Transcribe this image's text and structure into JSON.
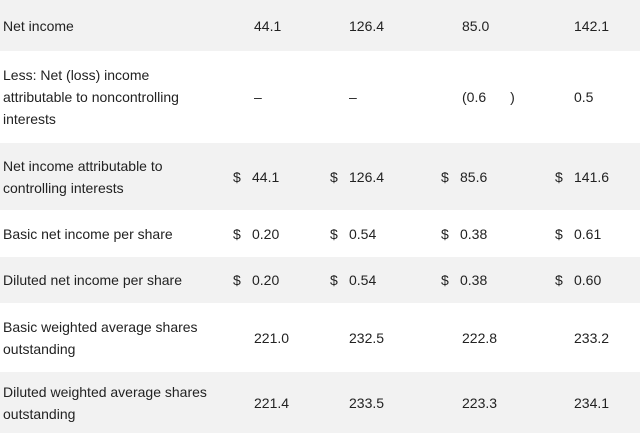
{
  "rows": [
    {
      "label": "Net income",
      "values": [
        "44.1",
        "126.4",
        "85.0",
        "142.1"
      ],
      "dollar": false,
      "shaded": true
    },
    {
      "label": "Less: Net (loss) income attributable to noncontrolling interests",
      "values": [
        "–",
        "–",
        "(0.6",
        "0.5"
      ],
      "close_paren": ")",
      "dollar": false,
      "shaded": false
    },
    {
      "label": "Net income attributable to controlling interests",
      "values": [
        "44.1",
        "126.4",
        "85.6",
        "141.6"
      ],
      "dollar": true,
      "shaded": true
    },
    {
      "label": "Basic net income per share",
      "values": [
        "0.20",
        "0.54",
        "0.38",
        "0.61"
      ],
      "dollar": true,
      "shaded": false
    },
    {
      "label": "Diluted net income per share",
      "values": [
        "0.20",
        "0.54",
        "0.38",
        "0.60"
      ],
      "dollar": true,
      "shaded": true
    },
    {
      "label": "Basic weighted average shares outstanding",
      "values": [
        "221.0",
        "232.5",
        "222.8",
        "233.2"
      ],
      "dollar": false,
      "shaded": false
    },
    {
      "label": "Diluted weighted average shares outstanding",
      "values": [
        "221.4",
        "233.5",
        "223.3",
        "234.1"
      ],
      "dollar": false,
      "shaded": true
    }
  ],
  "currency_symbol": "$"
}
